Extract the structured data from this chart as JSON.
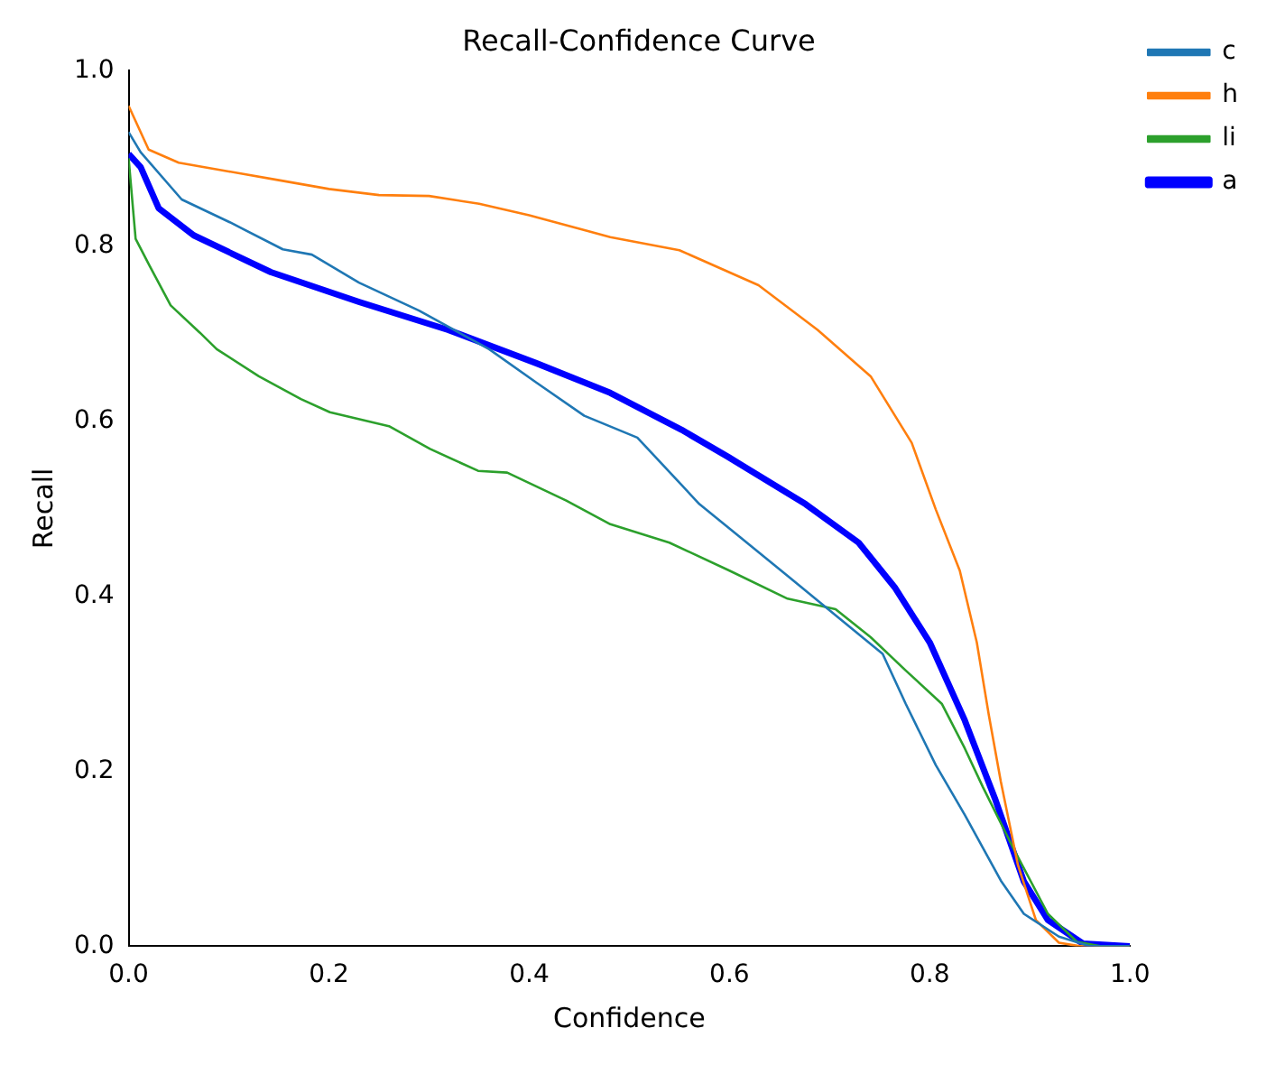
{
  "chart_data": {
    "type": "line",
    "title": "Recall-Confidence Curve",
    "xlabel": "Confidence",
    "ylabel": "Recall",
    "xlim": [
      0,
      1
    ],
    "ylim": [
      0,
      1
    ],
    "xticks": [
      {
        "value": 0,
        "label": "0.0"
      },
      0.2,
      0.4,
      0.6,
      0.8,
      {
        "value": 1,
        "label": "1.0"
      }
    ],
    "yticks": [
      {
        "value": 0,
        "label": "0.0"
      },
      0.2,
      0.4,
      0.6,
      0.8,
      {
        "value": 1,
        "label": "1.0"
      }
    ],
    "legend": "top right",
    "marker": "none",
    "line_style": "solid",
    "series": [
      {
        "name": "c",
        "color": "#1f77b4",
        "x": [
          0,
          0.012,
          0.053,
          0.101,
          0.154,
          0.183,
          0.23,
          0.29,
          0.36,
          0.407,
          0.455,
          0.508,
          0.57,
          0.611,
          0.658,
          0.706,
          0.753,
          0.776,
          0.806,
          0.835,
          0.871,
          0.894,
          0.929,
          0.96,
          1
        ],
        "values": [
          0.93,
          0.907,
          0.853,
          0.827,
          0.796,
          0.79,
          0.758,
          0.726,
          0.682,
          0.644,
          0.606,
          0.581,
          0.505,
          0.467,
          0.423,
          0.378,
          0.334,
          0.277,
          0.207,
          0.15,
          0.075,
          0.037,
          0.011,
          0,
          0
        ]
      },
      {
        "name": "h",
        "color": "#ff7f0e",
        "x": [
          0,
          0.02,
          0.05,
          0.1,
          0.15,
          0.2,
          0.25,
          0.3,
          0.35,
          0.4,
          0.481,
          0.55,
          0.629,
          0.688,
          0.741,
          0.782,
          0.806,
          0.83,
          0.847,
          0.859,
          0.871,
          0.888,
          0.906,
          0.929,
          0.95,
          1
        ],
        "values": [
          0.96,
          0.91,
          0.895,
          0.885,
          0.875,
          0.865,
          0.858,
          0.857,
          0.848,
          0.835,
          0.81,
          0.795,
          0.755,
          0.704,
          0.651,
          0.575,
          0.499,
          0.429,
          0.347,
          0.264,
          0.188,
          0.093,
          0.03,
          0.004,
          0,
          0
        ]
      },
      {
        "name": "li",
        "color": "#2ca02c",
        "x": [
          0,
          0.007,
          0.021,
          0.042,
          0.071,
          0.088,
          0.13,
          0.172,
          0.201,
          0.26,
          0.301,
          0.349,
          0.378,
          0.437,
          0.481,
          0.54,
          0.6,
          0.658,
          0.706,
          0.741,
          0.776,
          0.812,
          0.835,
          0.853,
          0.883,
          0.918,
          0.947,
          0.97,
          1
        ],
        "values": [
          0.9,
          0.808,
          0.777,
          0.732,
          0.701,
          0.682,
          0.651,
          0.625,
          0.61,
          0.594,
          0.568,
          0.543,
          0.541,
          0.509,
          0.482,
          0.461,
          0.429,
          0.397,
          0.385,
          0.353,
          0.315,
          0.277,
          0.226,
          0.182,
          0.113,
          0.037,
          0.005,
          0,
          0
        ]
      },
      {
        "name": "a",
        "color": "#0000ff",
        "x": [
          0,
          0.012,
          0.03,
          0.065,
          0.142,
          0.23,
          0.319,
          0.407,
          0.481,
          0.552,
          0.6,
          0.676,
          0.729,
          0.765,
          0.8,
          0.835,
          0.865,
          0.894,
          0.918,
          0.953,
          1
        ],
        "values": [
          0.905,
          0.89,
          0.843,
          0.812,
          0.77,
          0.736,
          0.704,
          0.666,
          0.632,
          0.59,
          0.558,
          0.505,
          0.461,
          0.41,
          0.347,
          0.258,
          0.169,
          0.074,
          0.03,
          0.003,
          0
        ]
      }
    ]
  }
}
